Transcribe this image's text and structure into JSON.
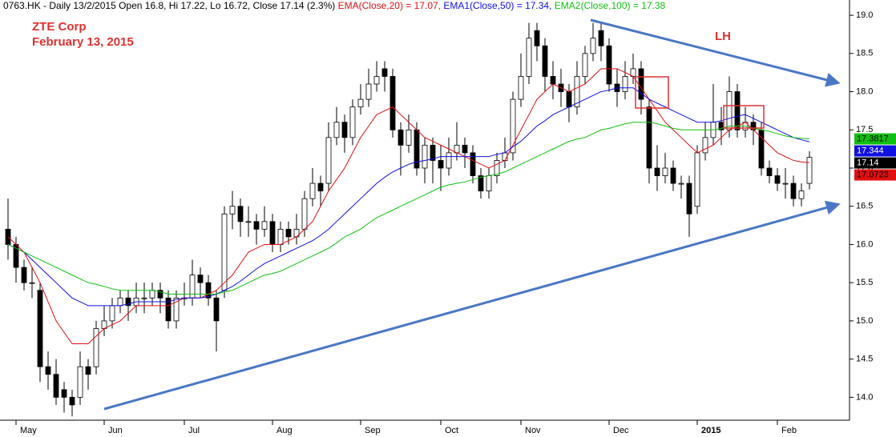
{
  "chart_data": {
    "type": "candlestick",
    "header": "0763.HK - Daily 13/2/2015 Open 16.8, Hi 17.22, Lo 16.72, Close 17.14 (2.3%)",
    "title": "ZTE Corp",
    "subtitle": "February 13, 2015",
    "annotation": "LH",
    "up_color": "#ffffff",
    "down_color": "#000000",
    "close_color": "#000000",
    "categories": [
      null,
      "May",
      null,
      null,
      null,
      null,
      null,
      null,
      null,
      null,
      null,
      null,
      "Jun",
      null,
      null,
      null,
      null,
      null,
      null,
      null,
      null,
      null,
      "Jul",
      null,
      null,
      null,
      null,
      null,
      null,
      null,
      null,
      null,
      null,
      "Aug",
      null,
      null,
      null,
      null,
      null,
      null,
      null,
      null,
      null,
      null,
      "Sep",
      null,
      null,
      null,
      null,
      null,
      null,
      null,
      null,
      null,
      "Oct",
      null,
      null,
      null,
      null,
      null,
      null,
      null,
      null,
      null,
      "Nov",
      null,
      null,
      null,
      null,
      null,
      null,
      null,
      null,
      null,
      null,
      "Dec",
      null,
      null,
      null,
      null,
      null,
      null,
      null,
      null,
      null,
      null,
      "2015",
      null,
      null,
      null,
      null,
      null,
      null,
      null,
      null,
      null,
      "Feb",
      null,
      null,
      null,
      null
    ],
    "open": [
      16.2,
      16.0,
      15.7,
      15.5,
      15.4,
      14.4,
      14.3,
      14.1,
      14.0,
      14.0,
      14.4,
      14.4,
      14.9,
      15.0,
      15.2,
      15.3,
      15.2,
      15.3,
      15.3,
      15.4,
      15.3,
      15.0,
      15.3,
      15.3,
      15.6,
      15.5,
      15.3,
      15.4,
      16.4,
      16.5,
      16.3,
      16.3,
      16.2,
      16.3,
      16.0,
      16.2,
      16.1,
      16.2,
      16.6,
      16.8,
      16.8,
      17.4,
      17.6,
      17.4,
      17.8,
      17.9,
      18.1,
      18.3,
      18.2,
      17.5,
      17.3,
      17.5,
      17.0,
      17.3,
      17.1,
      17.0,
      17.2,
      17.3,
      17.2,
      16.9,
      16.7,
      16.9,
      17.1,
      17.2,
      17.9,
      18.2,
      18.8,
      18.6,
      18.2,
      18.1,
      18.0,
      17.8,
      18.2,
      18.5,
      18.8,
      18.6,
      18.1,
      18.0,
      18.2,
      18.3,
      17.8,
      17.0,
      16.9,
      17.0,
      16.8,
      16.8,
      16.5,
      17.2,
      17.4,
      17.6,
      17.5,
      18.0,
      17.5,
      17.6,
      17.5,
      17.0,
      16.9,
      16.8,
      16.8,
      16.6,
      16.8
    ],
    "high": [
      16.6,
      16.1,
      15.8,
      15.7,
      15.5,
      14.6,
      14.5,
      14.2,
      14.1,
      14.6,
      14.5,
      15.0,
      15.2,
      15.3,
      15.4,
      15.4,
      15.5,
      15.5,
      15.5,
      15.5,
      15.4,
      15.4,
      15.5,
      15.8,
      15.7,
      15.6,
      15.4,
      16.5,
      16.7,
      16.6,
      16.5,
      16.4,
      16.5,
      16.4,
      16.3,
      16.3,
      16.4,
      16.7,
      17.0,
      16.9,
      17.6,
      17.8,
      17.7,
      17.9,
      18.1,
      18.3,
      18.4,
      18.4,
      18.3,
      17.6,
      17.7,
      17.6,
      17.4,
      17.4,
      17.3,
      17.4,
      17.6,
      17.4,
      17.3,
      17.0,
      17.0,
      17.2,
      17.4,
      18.0,
      18.5,
      18.9,
      18.9,
      18.7,
      18.4,
      18.3,
      18.1,
      18.4,
      18.6,
      18.9,
      18.9,
      18.7,
      18.3,
      18.4,
      18.5,
      18.4,
      17.9,
      17.3,
      17.2,
      17.1,
      16.9,
      16.9,
      17.3,
      17.6,
      18.1,
      17.8,
      18.2,
      18.1,
      17.8,
      17.7,
      17.6,
      17.1,
      17.0,
      17.0,
      16.9,
      16.8,
      17.22
    ],
    "low": [
      15.8,
      15.5,
      15.4,
      15.3,
      14.2,
      14.1,
      13.9,
      13.8,
      13.75,
      13.9,
      14.1,
      14.3,
      14.8,
      14.9,
      15.1,
      15.0,
      15.1,
      15.1,
      15.2,
      15.1,
      14.9,
      14.9,
      15.2,
      15.2,
      15.3,
      15.2,
      14.6,
      15.3,
      16.2,
      16.1,
      16.1,
      16.0,
      16.1,
      15.9,
      15.9,
      16.0,
      16.0,
      16.1,
      16.5,
      16.5,
      16.7,
      17.3,
      17.2,
      17.3,
      17.7,
      17.8,
      18.0,
      18.0,
      17.4,
      16.9,
      17.2,
      16.9,
      16.8,
      16.8,
      16.7,
      16.9,
      17.1,
      17.0,
      16.8,
      16.6,
      16.6,
      16.8,
      17.0,
      17.1,
      17.8,
      18.1,
      18.4,
      18.0,
      17.9,
      17.8,
      17.6,
      17.7,
      18.1,
      18.4,
      18.4,
      18.0,
      17.8,
      17.9,
      18.1,
      17.7,
      16.8,
      16.7,
      16.8,
      16.7,
      16.6,
      16.1,
      16.4,
      17.1,
      17.3,
      17.3,
      17.4,
      17.4,
      17.4,
      17.3,
      16.9,
      16.8,
      16.7,
      16.6,
      16.5,
      16.5,
      16.72
    ],
    "close": [
      16.0,
      15.7,
      15.5,
      15.5,
      14.4,
      14.3,
      14.0,
      14.0,
      13.9,
      14.4,
      14.3,
      14.9,
      15.0,
      15.2,
      15.3,
      15.2,
      15.3,
      15.3,
      15.4,
      15.3,
      15.0,
      15.3,
      15.3,
      15.6,
      15.5,
      15.3,
      15.0,
      16.4,
      16.5,
      16.3,
      16.3,
      16.2,
      16.3,
      16.0,
      16.2,
      16.1,
      16.2,
      16.6,
      16.8,
      16.7,
      17.4,
      17.6,
      17.4,
      17.8,
      17.9,
      18.1,
      18.2,
      18.2,
      17.5,
      17.3,
      17.5,
      17.0,
      17.3,
      17.1,
      17.0,
      17.2,
      17.3,
      17.2,
      16.9,
      16.7,
      16.9,
      17.1,
      17.2,
      17.9,
      18.2,
      18.7,
      18.6,
      18.2,
      18.1,
      18.0,
      17.8,
      18.2,
      18.5,
      18.7,
      18.6,
      18.1,
      18.0,
      18.2,
      18.3,
      17.9,
      17.0,
      16.9,
      17.0,
      16.8,
      16.8,
      16.4,
      17.2,
      17.4,
      17.6,
      17.5,
      18.0,
      17.5,
      17.6,
      17.5,
      17.0,
      16.9,
      16.8,
      16.8,
      16.6,
      16.7,
      17.14
    ],
    "series": [
      {
        "name": "EMA(Close,20) = 17.07,",
        "color": "#e01010",
        "values": [
          16.1,
          16.0,
          15.9,
          15.7,
          15.5,
          15.25,
          15.0,
          14.85,
          14.7,
          14.7,
          14.7,
          14.8,
          14.9,
          14.95,
          15.0,
          15.1,
          15.2,
          15.2,
          15.2,
          15.2,
          15.2,
          15.25,
          15.3,
          15.3,
          15.3,
          15.35,
          15.4,
          15.5,
          15.6,
          15.75,
          15.9,
          15.95,
          16.0,
          16.0,
          16.0,
          16.05,
          16.1,
          16.2,
          16.3,
          16.5,
          16.7,
          16.85,
          17.0,
          17.2,
          17.4,
          17.55,
          17.7,
          17.75,
          17.8,
          17.7,
          17.6,
          17.5,
          17.4,
          17.35,
          17.3,
          17.25,
          17.2,
          17.15,
          17.1,
          17.05,
          17.0,
          17.05,
          17.1,
          17.3,
          17.5,
          17.7,
          17.9,
          18.0,
          18.1,
          18.05,
          18.0,
          18.05,
          18.1,
          18.2,
          18.3,
          18.3,
          18.3,
          18.25,
          18.2,
          18.05,
          17.9,
          17.75,
          17.6,
          17.5,
          17.4,
          17.3,
          17.2,
          17.25,
          17.3,
          17.4,
          17.5,
          17.55,
          17.6,
          17.5,
          17.4,
          17.3,
          17.2,
          17.15,
          17.1,
          17.08,
          17.0723
        ]
      },
      {
        "name": "EMA1(Close,50) = 17.34,",
        "color": "#1010e0",
        "values": [
          16.0,
          15.95,
          15.9,
          15.8,
          15.7,
          15.6,
          15.5,
          15.4,
          15.3,
          15.25,
          15.2,
          15.2,
          15.2,
          15.2,
          15.2,
          15.22,
          15.25,
          15.25,
          15.25,
          15.25,
          15.25,
          15.28,
          15.3,
          15.3,
          15.3,
          15.32,
          15.35,
          15.4,
          15.45,
          15.52,
          15.6,
          15.68,
          15.75,
          15.8,
          15.85,
          15.9,
          15.95,
          16.0,
          16.05,
          16.12,
          16.2,
          16.3,
          16.4,
          16.5,
          16.6,
          16.7,
          16.8,
          16.88,
          16.95,
          17.0,
          17.05,
          17.08,
          17.1,
          17.12,
          17.15,
          17.15,
          17.15,
          17.15,
          17.15,
          17.15,
          17.15,
          17.18,
          17.2,
          17.28,
          17.35,
          17.45,
          17.55,
          17.62,
          17.7,
          17.75,
          17.8,
          17.85,
          17.9,
          17.95,
          18.0,
          18.02,
          18.05,
          18.05,
          18.05,
          17.98,
          17.9,
          17.85,
          17.8,
          17.75,
          17.7,
          17.65,
          17.6,
          17.6,
          17.6,
          17.62,
          17.65,
          17.68,
          17.7,
          17.65,
          17.6,
          17.55,
          17.5,
          17.45,
          17.4,
          17.37,
          17.344
        ]
      },
      {
        "name": "EMA2(Close,100) = 17.38",
        "color": "#10c010",
        "values": [
          16.0,
          15.95,
          15.9,
          15.85,
          15.8,
          15.75,
          15.7,
          15.65,
          15.6,
          15.55,
          15.5,
          15.48,
          15.45,
          15.42,
          15.4,
          15.4,
          15.4,
          15.4,
          15.4,
          15.38,
          15.35,
          15.35,
          15.35,
          15.35,
          15.35,
          15.35,
          15.35,
          15.38,
          15.4,
          15.45,
          15.5,
          15.55,
          15.6,
          15.62,
          15.65,
          15.7,
          15.75,
          15.8,
          15.85,
          15.9,
          15.95,
          16.02,
          16.1,
          16.15,
          16.2,
          16.28,
          16.35,
          16.4,
          16.45,
          16.5,
          16.55,
          16.6,
          16.65,
          16.7,
          16.75,
          16.78,
          16.8,
          16.82,
          16.85,
          16.88,
          16.9,
          16.92,
          16.95,
          17.0,
          17.05,
          17.1,
          17.15,
          17.2,
          17.25,
          17.3,
          17.35,
          17.38,
          17.4,
          17.45,
          17.5,
          17.52,
          17.55,
          17.58,
          17.6,
          17.6,
          17.6,
          17.58,
          17.55,
          17.52,
          17.5,
          17.5,
          17.5,
          17.5,
          17.5,
          17.52,
          17.55,
          17.55,
          17.55,
          17.52,
          17.5,
          17.48,
          17.45,
          17.42,
          17.4,
          17.39,
          17.3817
        ]
      }
    ],
    "ylim": [
      13.7,
      19.2
    ],
    "yticks": [
      {
        "value": 14,
        "label": "14.0"
      },
      14.5,
      {
        "value": 15,
        "label": "15.0"
      },
      15.5,
      {
        "value": 16,
        "label": "16.0"
      },
      16.5,
      {
        "value": 17,
        "label": "17.0"
      },
      17.5,
      {
        "value": 18,
        "label": "18.0"
      },
      18.5,
      {
        "value": 19,
        "label": "19.0"
      }
    ],
    "grid": false
  }
}
